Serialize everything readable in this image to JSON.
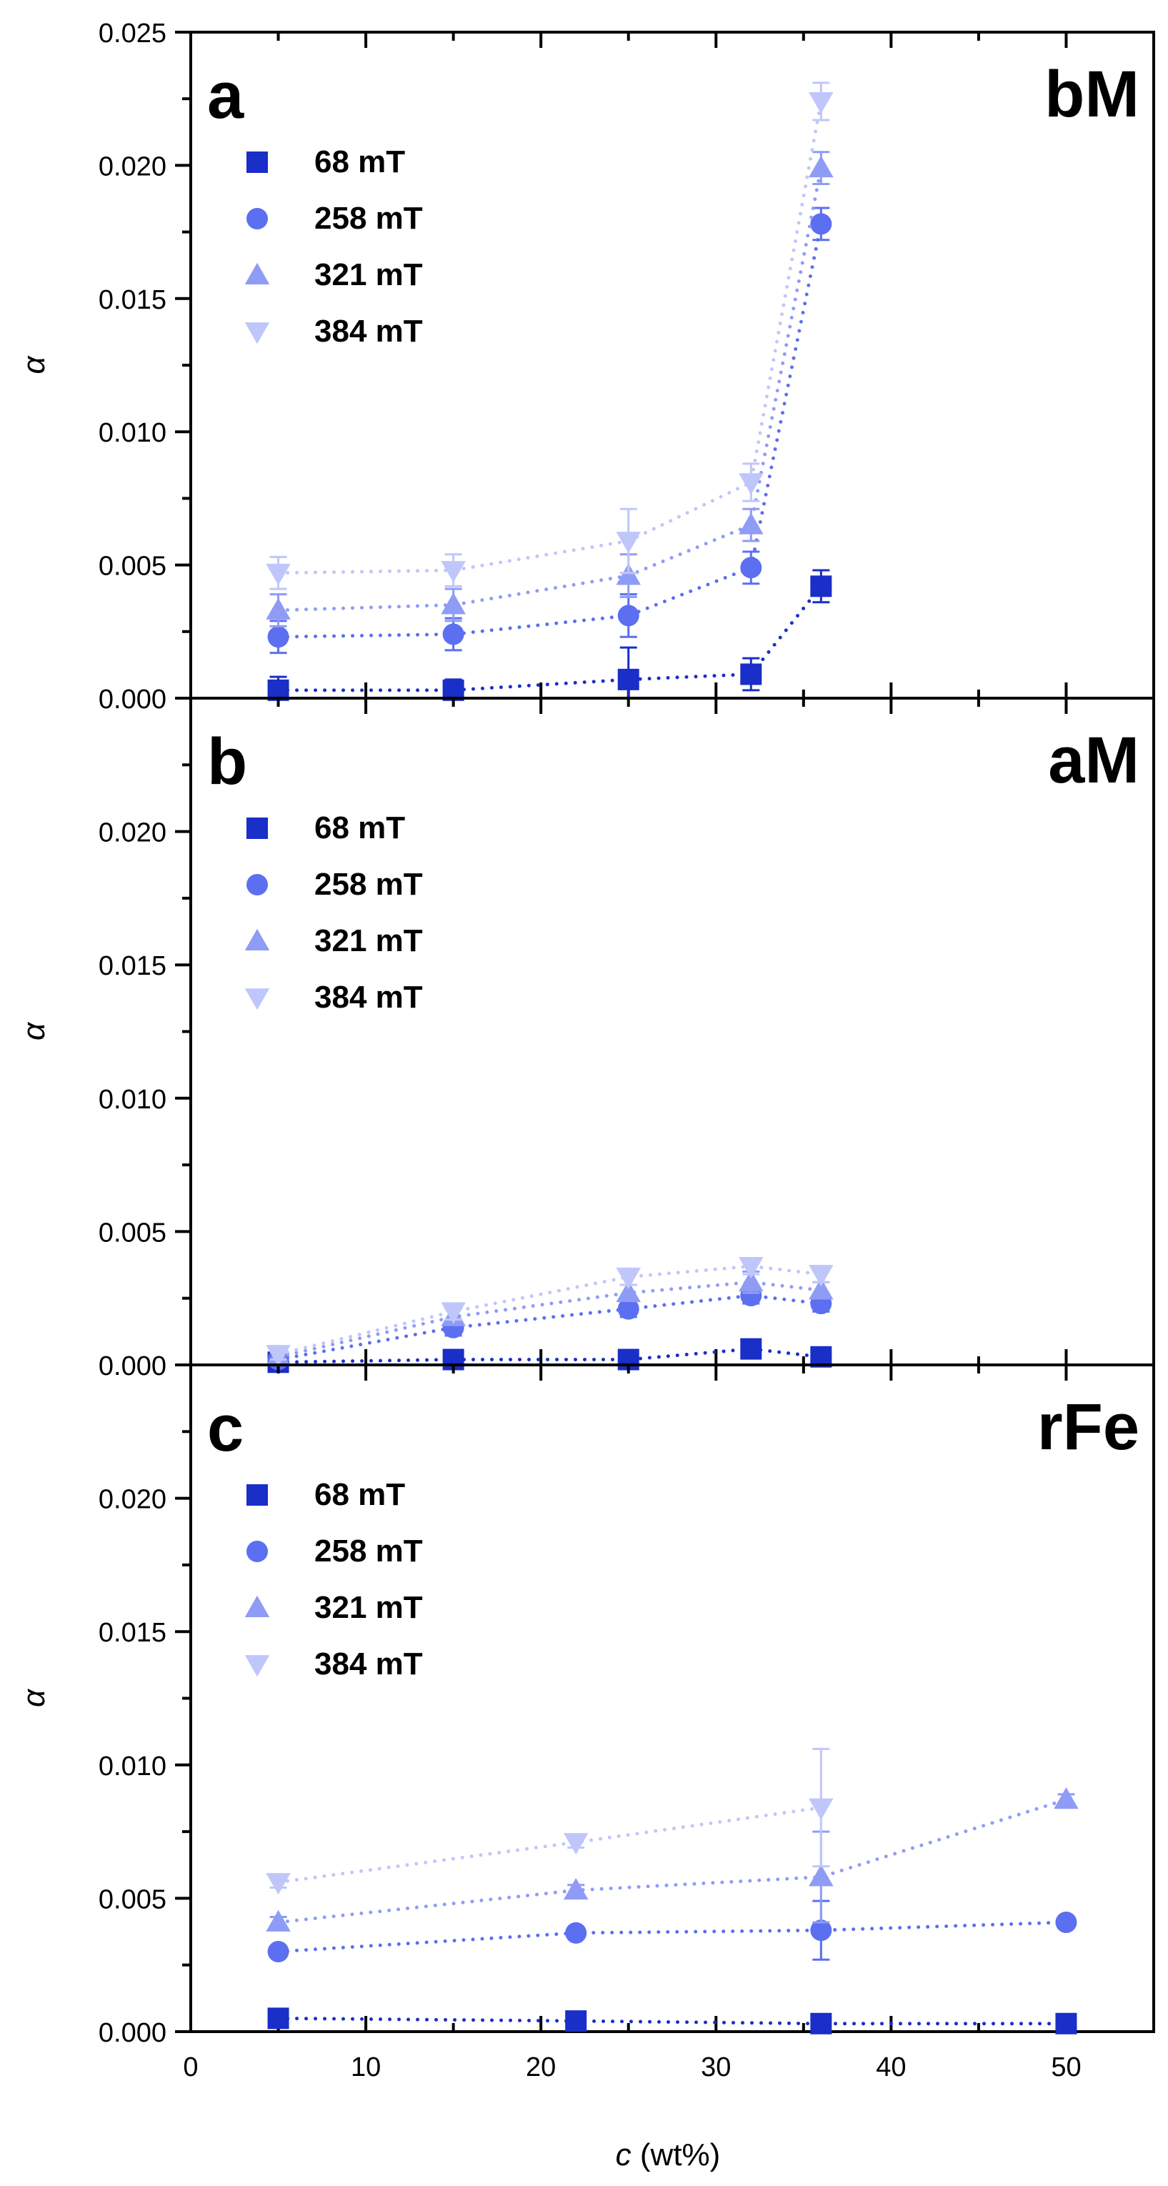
{
  "x_axis_label_var": "c",
  "x_axis_label_unit": " (wt%)",
  "chart_data": [
    {
      "type": "scatter",
      "panel_letter": "a",
      "panel_tag": "bM",
      "ylabel": "α",
      "xlim": [
        0,
        55
      ],
      "ylim": [
        0,
        0.025
      ],
      "yticks": [
        "0.000",
        "0.005",
        "0.010",
        "0.015",
        "0.020",
        "0.025"
      ],
      "legend_position": "top-left",
      "series": [
        {
          "name": "68 mT",
          "marker": "square",
          "color": "#1a2ec8",
          "x": [
            5,
            15,
            25,
            32,
            36
          ],
          "y": [
            0.0003,
            0.0003,
            0.0007,
            0.0009,
            0.0042
          ],
          "err": [
            0.0005,
            0.0004,
            0.0012,
            0.0006,
            0.0006
          ]
        },
        {
          "name": "258 mT",
          "marker": "circle",
          "color": "#5b6ff0",
          "x": [
            5,
            15,
            25,
            32,
            36
          ],
          "y": [
            0.0023,
            0.0024,
            0.0031,
            0.0049,
            0.0178
          ],
          "err": [
            0.0006,
            0.0006,
            0.0008,
            0.0006,
            0.0006
          ]
        },
        {
          "name": "321 mT",
          "marker": "triangle-up",
          "color": "#8e9cf5",
          "x": [
            5,
            15,
            25,
            32,
            36
          ],
          "y": [
            0.0033,
            0.0035,
            0.0046,
            0.0065,
            0.0199
          ],
          "err": [
            0.0006,
            0.0006,
            0.0008,
            0.0006,
            0.0006
          ]
        },
        {
          "name": "384 mT",
          "marker": "triangle-down",
          "color": "#bfc7fa",
          "x": [
            5,
            15,
            25,
            32,
            36
          ],
          "y": [
            0.0047,
            0.0048,
            0.0059,
            0.0081,
            0.0224
          ],
          "err": [
            0.0006,
            0.0006,
            0.0012,
            0.0007,
            0.0007
          ]
        }
      ]
    },
    {
      "type": "scatter",
      "panel_letter": "b",
      "panel_tag": "aM",
      "ylabel": "α",
      "xlim": [
        0,
        55
      ],
      "ylim": [
        0,
        0.025
      ],
      "yticks": [
        "0.000",
        "0.005",
        "0.010",
        "0.015",
        "0.020"
      ],
      "legend_position": "top-left",
      "series": [
        {
          "name": "68 mT",
          "marker": "square",
          "color": "#1a2ec8",
          "x": [
            5,
            15,
            25,
            32,
            36
          ],
          "y": [
            0.0001,
            0.0002,
            0.0002,
            0.0006,
            0.0003
          ],
          "err": [
            0.0002,
            0.0002,
            0.0002,
            0.0002,
            0.0002
          ]
        },
        {
          "name": "258 mT",
          "marker": "circle",
          "color": "#5b6ff0",
          "x": [
            5,
            15,
            25,
            32,
            36
          ],
          "y": [
            0.0002,
            0.0014,
            0.0021,
            0.0026,
            0.0023
          ],
          "err": [
            0.0002,
            0.0003,
            0.0003,
            0.0003,
            0.0003
          ]
        },
        {
          "name": "321 mT",
          "marker": "triangle-up",
          "color": "#8e9cf5",
          "x": [
            5,
            15,
            25,
            32,
            36
          ],
          "y": [
            0.0003,
            0.0018,
            0.0027,
            0.0031,
            0.0028
          ],
          "err": [
            0.0002,
            0.0003,
            0.0003,
            0.0004,
            0.0003
          ]
        },
        {
          "name": "384 mT",
          "marker": "triangle-down",
          "color": "#bfc7fa",
          "x": [
            5,
            15,
            25,
            32,
            36
          ],
          "y": [
            0.0004,
            0.002,
            0.0033,
            0.0037,
            0.0034
          ],
          "err": [
            0.0002,
            0.0003,
            0.0003,
            0.0003,
            0.0003
          ]
        }
      ]
    },
    {
      "type": "scatter",
      "panel_letter": "c",
      "panel_tag": "rFe",
      "ylabel": "α",
      "xlim": [
        0,
        55
      ],
      "ylim": [
        0,
        0.025
      ],
      "yticks": [
        "0.000",
        "0.005",
        "0.010",
        "0.015",
        "0.020"
      ],
      "xticks": [
        "0",
        "10",
        "20",
        "30",
        "40",
        "50"
      ],
      "legend_position": "top-left",
      "series": [
        {
          "name": "68 mT",
          "marker": "square",
          "color": "#1a2ec8",
          "x": [
            5,
            22,
            36,
            50
          ],
          "y": [
            0.0005,
            0.0004,
            0.0003,
            0.0003
          ],
          "err": [
            0.0002,
            0.0002,
            0.0002,
            0.0002
          ]
        },
        {
          "name": "258 mT",
          "marker": "circle",
          "color": "#5b6ff0",
          "x": [
            5,
            22,
            36,
            50
          ],
          "y": [
            0.003,
            0.0037,
            0.0038,
            0.0041
          ],
          "err": [
            0.0002,
            0.0002,
            0.0011,
            0.0002
          ]
        },
        {
          "name": "321 mT",
          "marker": "triangle-up",
          "color": "#8e9cf5",
          "x": [
            5,
            22,
            36,
            50
          ],
          "y": [
            0.0041,
            0.0053,
            0.0058,
            0.0087
          ],
          "err": [
            0.0002,
            0.0002,
            0.0017,
            0.0002
          ]
        },
        {
          "name": "384 mT",
          "marker": "triangle-down",
          "color": "#bfc7fa",
          "x": [
            5,
            22,
            36
          ],
          "y": [
            0.0056,
            0.0071,
            0.0084
          ],
          "err": [
            0.0002,
            0.0002,
            0.0022
          ]
        }
      ]
    }
  ]
}
